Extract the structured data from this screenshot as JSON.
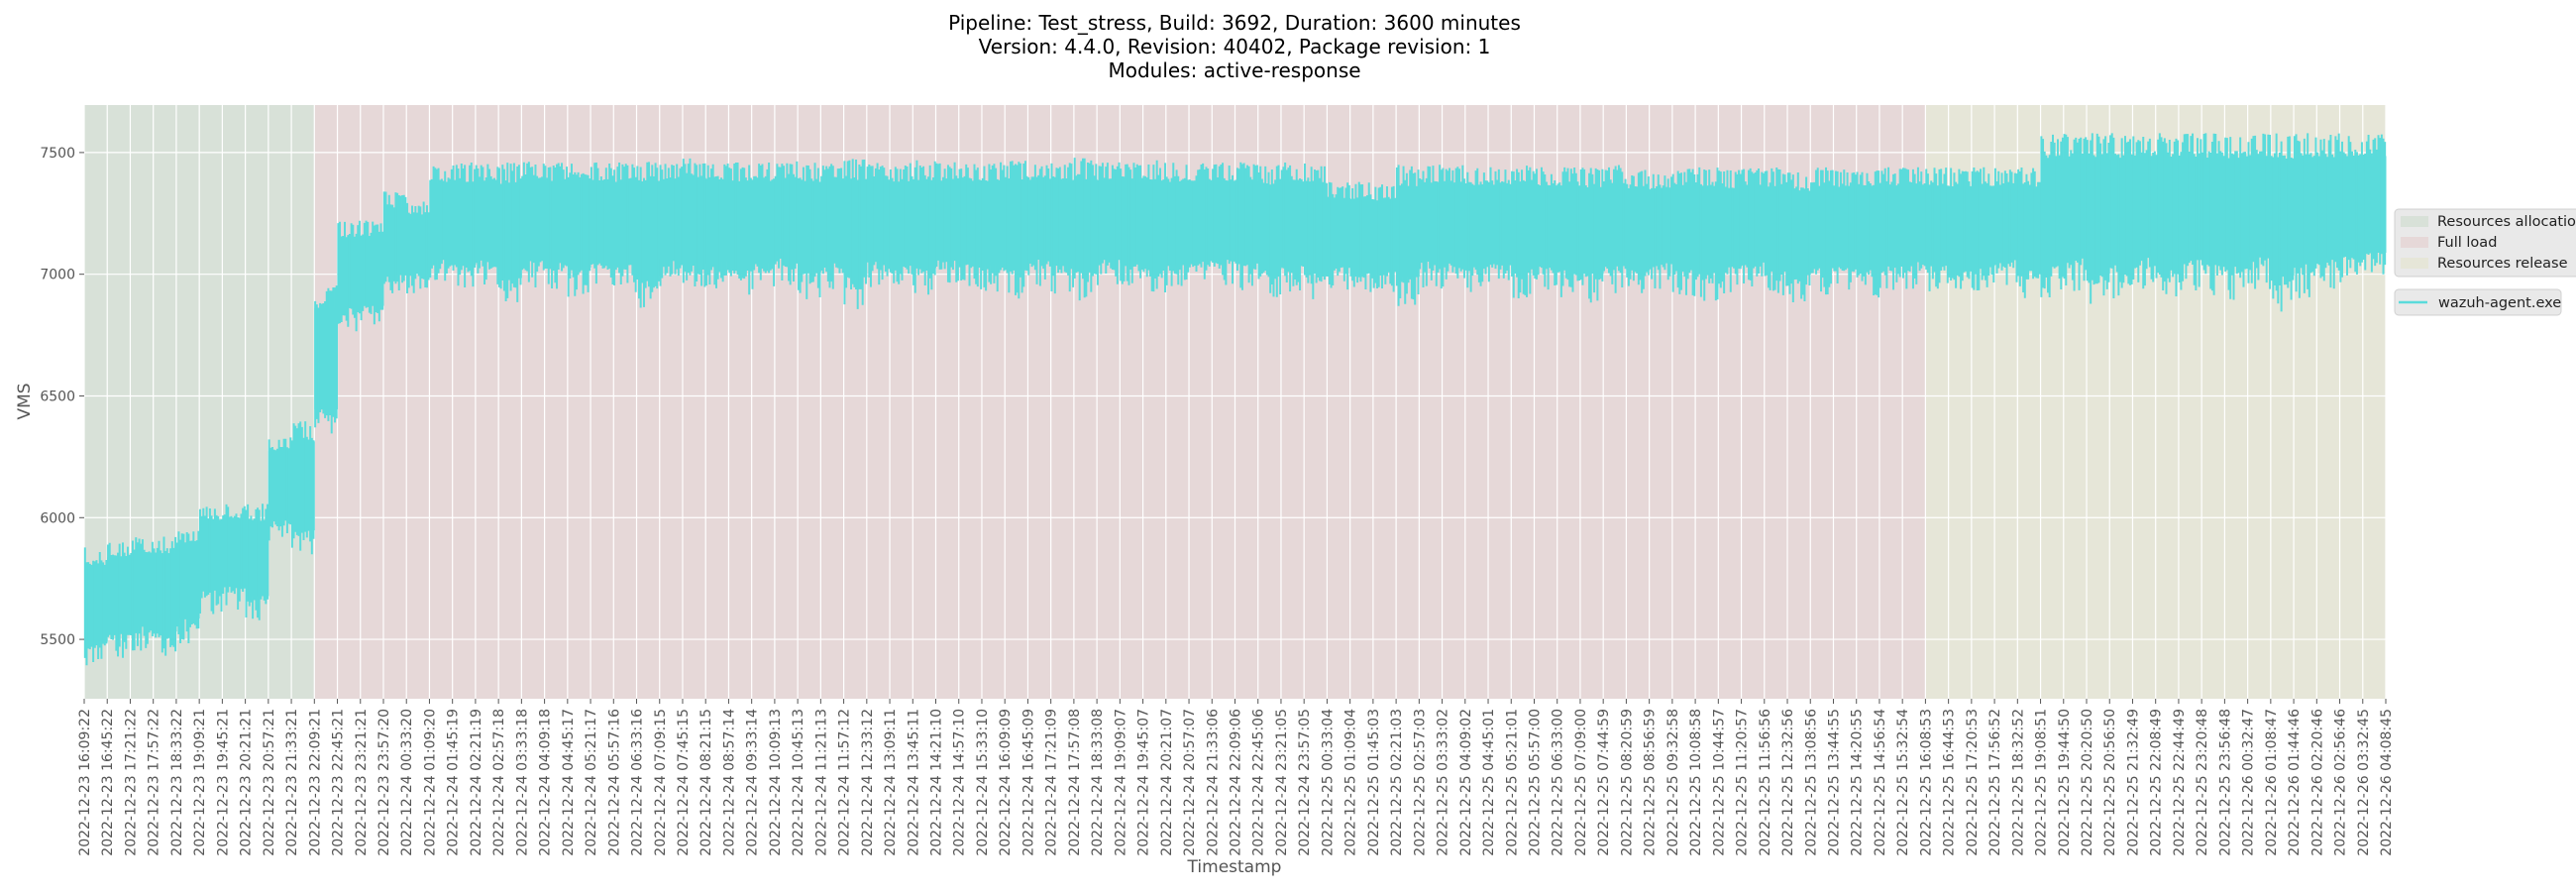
{
  "chart_data": {
    "type": "line",
    "title_lines": [
      "Pipeline: Test_stress, Build: 3692, Duration: 3600 minutes",
      "Version: 4.4.0, Revision: 40402, Package revision: 1",
      "Modules: active-response"
    ],
    "xlabel": "Timestamp",
    "ylabel": "VMS",
    "ylim": [
      5256,
      7695
    ],
    "yticks": [
      5500,
      6000,
      6500,
      7000,
      7500
    ],
    "grid": true,
    "legend_placement": "right-outside",
    "colors": {
      "axes_bg": "#e5e5e5",
      "line": "#5adbdb",
      "grid": "#ffffff"
    },
    "phases": [
      {
        "name": "Resources allocation",
        "start_tick": 0,
        "end_tick": 10,
        "color": "#d8e1d8"
      },
      {
        "name": "Full load",
        "start_tick": 10,
        "end_tick": 80,
        "color": "#e6d8d8"
      },
      {
        "name": "Resources release",
        "start_tick": 80,
        "end_tick": 100,
        "color": "#e6e6d8"
      }
    ],
    "xticks": [
      "2022-12-23 16:09:22",
      "2022-12-23 16:45:22",
      "2022-12-23 17:21:22",
      "2022-12-23 17:57:22",
      "2022-12-23 18:33:22",
      "2022-12-23 19:09:21",
      "2022-12-23 19:45:21",
      "2022-12-23 20:21:21",
      "2022-12-23 20:57:21",
      "2022-12-23 21:33:21",
      "2022-12-23 22:09:21",
      "2022-12-23 22:45:21",
      "2022-12-23 23:21:21",
      "2022-12-23 23:57:20",
      "2022-12-24 00:33:20",
      "2022-12-24 01:09:20",
      "2022-12-24 01:45:19",
      "2022-12-24 02:21:19",
      "2022-12-24 02:57:18",
      "2022-12-24 03:33:18",
      "2022-12-24 04:09:18",
      "2022-12-24 04:45:17",
      "2022-12-24 05:21:17",
      "2022-12-24 05:57:16",
      "2022-12-24 06:33:16",
      "2022-12-24 07:09:15",
      "2022-12-24 07:45:15",
      "2022-12-24 08:21:15",
      "2022-12-24 08:57:14",
      "2022-12-24 09:33:14",
      "2022-12-24 10:09:13",
      "2022-12-24 10:45:13",
      "2022-12-24 11:21:13",
      "2022-12-24 11:57:12",
      "2022-12-24 12:33:12",
      "2022-12-24 13:09:11",
      "2022-12-24 13:45:11",
      "2022-12-24 14:21:10",
      "2022-12-24 14:57:10",
      "2022-12-24 15:33:10",
      "2022-12-24 16:09:09",
      "2022-12-24 16:45:09",
      "2022-12-24 17:21:09",
      "2022-12-24 17:57:08",
      "2022-12-24 18:33:08",
      "2022-12-24 19:09:07",
      "2022-12-24 19:45:07",
      "2022-12-24 20:21:07",
      "2022-12-24 20:57:07",
      "2022-12-24 21:33:06",
      "2022-12-24 22:09:06",
      "2022-12-24 22:45:06",
      "2022-12-24 23:21:05",
      "2022-12-24 23:57:05",
      "2022-12-25 00:33:04",
      "2022-12-25 01:09:04",
      "2022-12-25 01:45:03",
      "2022-12-25 02:21:03",
      "2022-12-25 02:57:03",
      "2022-12-25 03:33:02",
      "2022-12-25 04:09:02",
      "2022-12-25 04:45:01",
      "2022-12-25 05:21:01",
      "2022-12-25 05:57:00",
      "2022-12-25 06:33:00",
      "2022-12-25 07:09:00",
      "2022-12-25 07:44:59",
      "2022-12-25 08:20:59",
      "2022-12-25 08:56:59",
      "2022-12-25 09:32:58",
      "2022-12-25 10:08:58",
      "2022-12-25 10:44:57",
      "2022-12-25 11:20:57",
      "2022-12-25 11:56:56",
      "2022-12-25 12:32:56",
      "2022-12-25 13:08:56",
      "2022-12-25 13:44:55",
      "2022-12-25 14:20:55",
      "2022-12-25 14:56:54",
      "2022-12-25 15:32:54",
      "2022-12-25 16:08:53",
      "2022-12-25 16:44:53",
      "2022-12-25 17:20:53",
      "2022-12-25 17:56:52",
      "2022-12-25 18:32:52",
      "2022-12-25 19:08:51",
      "2022-12-25 19:44:50",
      "2022-12-25 20:20:50",
      "2022-12-25 20:56:50",
      "2022-12-25 21:32:49",
      "2022-12-25 22:08:49",
      "2022-12-25 22:44:49",
      "2022-12-25 23:20:48",
      "2022-12-25 23:56:48",
      "2022-12-26 00:32:47",
      "2022-12-26 01:08:47",
      "2022-12-26 01:44:46",
      "2022-12-26 02:20:46",
      "2022-12-26 02:56:46",
      "2022-12-26 03:32:45",
      "2022-12-26 04:08:45"
    ],
    "series": [
      {
        "name": "wazuh-agent.exe",
        "interval_max": [
          5880,
          5910,
          5920,
          5930,
          5960,
          6060,
          6065,
          6060,
          6340,
          6400,
          6960,
          7220,
          7225,
          7340,
          7300,
          7450,
          7460,
          7460,
          7460,
          7470,
          7460,
          7480,
          7460,
          7460,
          7470,
          7460,
          7480,
          7460,
          7460,
          7460,
          7470,
          7460,
          7460,
          7480,
          7460,
          7460,
          7470,
          7460,
          7460,
          7460,
          7470,
          7460,
          7460,
          7480,
          7460,
          7460,
          7470,
          7460,
          7460,
          7460,
          7460,
          7450,
          7460,
          7460,
          7380,
          7380,
          7370,
          7450,
          7450,
          7450,
          7440,
          7440,
          7450,
          7440,
          7440,
          7440,
          7450,
          7430,
          7420,
          7440,
          7440,
          7430,
          7440,
          7440,
          7420,
          7440,
          7430,
          7440,
          7440,
          7440,
          7440,
          7440,
          7440,
          7440,
          7440,
          7580,
          7580,
          7580,
          7580,
          7580,
          7580,
          7580,
          7580,
          7580,
          7580,
          7580,
          7580,
          7580,
          7580,
          7580
        ],
        "interval_min": [
          5380,
          5420,
          5450,
          5420,
          5480,
          5600,
          5620,
          5570,
          5900,
          5820,
          6300,
          6760,
          6770,
          6900,
          6920,
          6950,
          6920,
          6950,
          6850,
          6940,
          6930,
          6900,
          6950,
          6920,
          6860,
          6950,
          6920,
          6940,
          6900,
          6930,
          6950,
          6880,
          6930,
          6850,
          6940,
          6920,
          6900,
          6950,
          6930,
          6920,
          6900,
          6950,
          6920,
          6880,
          6950,
          6930,
          6900,
          6920,
          6940,
          6950,
          6930,
          6900,
          6920,
          6880,
          6930,
          6900,
          6920,
          6860,
          6940,
          6930,
          6920,
          6950,
          6900,
          6930,
          6900,
          6880,
          6920,
          6900,
          6940,
          6910,
          6890,
          6920,
          6950,
          6900,
          6880,
          6910,
          6930,
          6900,
          6920,
          6940,
          6930,
          6900,
          6920,
          6950,
          6900,
          6880,
          6920,
          6840,
          6900,
          6930,
          6860,
          6920,
          6900,
          6890,
          6930,
          6830,
          6900,
          6920,
          6940,
          6950
        ]
      }
    ]
  }
}
